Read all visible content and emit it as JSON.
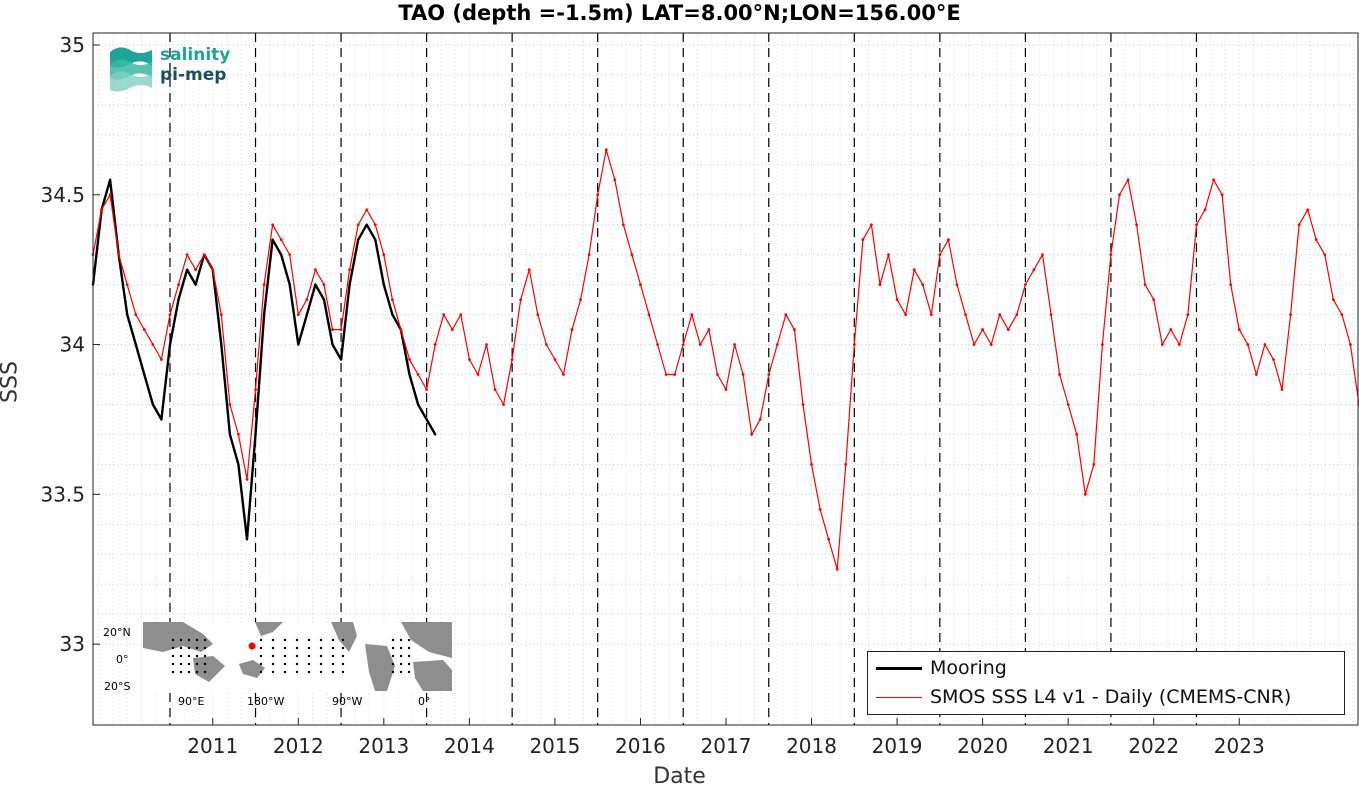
{
  "chart_data": {
    "type": "line",
    "title": "TAO (depth =-1.5m) LAT=8.00°N;LON=156.00°E",
    "xlabel": "Date",
    "ylabel": "SSS",
    "xlim": [
      2010.1,
      2024.9
    ],
    "ylim": [
      32.73,
      35.04
    ],
    "yticks": [
      33,
      33.5,
      34,
      34.5,
      35
    ],
    "ytick_labels": [
      "33",
      "33.5",
      "34",
      "34.5",
      "35"
    ],
    "xtick_labels": [
      "2011",
      "2012",
      "2013",
      "2014",
      "2015",
      "2016",
      "2017",
      "2018",
      "2019",
      "2020",
      "2021",
      "2022",
      "2023"
    ],
    "year_lines": [
      2011,
      2012,
      2013,
      2014,
      2015,
      2016,
      2017,
      2018,
      2019,
      2020,
      2021,
      2022,
      2023
    ],
    "grid": true,
    "legend_position": "bottom-right",
    "series": [
      {
        "name": "Mooring",
        "color": "#000000",
        "x": [
          2010.1,
          2010.2,
          2010.3,
          2010.4,
          2010.5,
          2010.6,
          2010.7,
          2010.8,
          2010.9,
          2011.0,
          2011.1,
          2011.2,
          2011.3,
          2011.4,
          2011.5,
          2011.6,
          2011.7,
          2011.8,
          2011.9,
          2012.0,
          2012.1,
          2012.2,
          2012.3,
          2012.4,
          2012.5,
          2012.6,
          2012.7,
          2012.8,
          2012.9,
          2013.0,
          2013.1,
          2013.2,
          2013.3,
          2013.4,
          2013.5,
          2013.6,
          2013.7,
          2013.8,
          2013.9,
          2014.0,
          2014.1
        ],
        "y": [
          34.2,
          34.45,
          34.55,
          34.3,
          34.1,
          34.0,
          33.9,
          33.8,
          33.75,
          34.0,
          34.15,
          34.25,
          34.2,
          34.3,
          34.25,
          34.0,
          33.7,
          33.6,
          33.35,
          33.7,
          34.1,
          34.35,
          34.3,
          34.2,
          34.0,
          34.1,
          34.2,
          34.15,
          34.0,
          33.95,
          34.2,
          34.35,
          34.4,
          34.35,
          34.2,
          34.1,
          34.05,
          33.9,
          33.8,
          33.75,
          33.7
        ]
      },
      {
        "name": "SMOS SSS L4 v1 - Daily (CMEMS-CNR)",
        "color": "#ff0000",
        "x": [
          2010.1,
          2010.2,
          2010.3,
          2010.4,
          2010.5,
          2010.6,
          2010.7,
          2010.8,
          2010.9,
          2011.0,
          2011.1,
          2011.2,
          2011.3,
          2011.4,
          2011.5,
          2011.6,
          2011.7,
          2011.8,
          2011.9,
          2012.0,
          2012.1,
          2012.2,
          2012.3,
          2012.4,
          2012.5,
          2012.6,
          2012.7,
          2012.8,
          2012.9,
          2013.0,
          2013.1,
          2013.2,
          2013.3,
          2013.4,
          2013.5,
          2013.6,
          2013.7,
          2013.8,
          2013.9,
          2014.0,
          2014.1,
          2014.2,
          2014.3,
          2014.4,
          2014.5,
          2014.6,
          2014.7,
          2014.8,
          2014.9,
          2015.0,
          2015.1,
          2015.2,
          2015.3,
          2015.4,
          2015.5,
          2015.6,
          2015.7,
          2015.8,
          2015.9,
          2016.0,
          2016.1,
          2016.2,
          2016.3,
          2016.4,
          2016.5,
          2016.6,
          2016.7,
          2016.8,
          2016.9,
          2017.0,
          2017.1,
          2017.2,
          2017.3,
          2017.4,
          2017.5,
          2017.6,
          2017.7,
          2017.8,
          2017.9,
          2018.0,
          2018.1,
          2018.2,
          2018.3,
          2018.4,
          2018.5,
          2018.6,
          2018.7,
          2018.8,
          2018.9,
          2019.0,
          2019.1,
          2019.2,
          2019.3,
          2019.4,
          2019.5,
          2019.6,
          2019.7,
          2019.8,
          2019.9,
          2020.0,
          2020.1,
          2020.2,
          2020.3,
          2020.4,
          2020.5,
          2020.6,
          2020.7,
          2020.8,
          2020.9,
          2021.0,
          2021.1,
          2021.2,
          2021.3,
          2021.4,
          2021.5,
          2021.6,
          2021.7,
          2021.8,
          2021.9,
          2022.0,
          2022.1,
          2022.2,
          2022.3,
          2022.4,
          2022.5,
          2022.6,
          2022.7,
          2022.8,
          2022.9,
          2023.0,
          2023.1,
          2023.2,
          2023.3,
          2023.4,
          2023.5,
          2023.6,
          2023.7,
          2023.8,
          2023.9,
          2024.0,
          2024.1,
          2024.2,
          2024.3,
          2024.4,
          2024.5,
          2024.6,
          2024.7,
          2024.8,
          2024.9
        ],
        "y": [
          34.3,
          34.45,
          34.5,
          34.3,
          34.2,
          34.1,
          34.05,
          34.0,
          33.95,
          34.1,
          34.2,
          34.3,
          34.25,
          34.3,
          34.25,
          34.1,
          33.8,
          33.7,
          33.55,
          33.85,
          34.2,
          34.4,
          34.35,
          34.3,
          34.1,
          34.15,
          34.25,
          34.2,
          34.05,
          34.05,
          34.25,
          34.4,
          34.45,
          34.4,
          34.3,
          34.15,
          34.05,
          33.95,
          33.9,
          33.85,
          34.0,
          34.1,
          34.05,
          34.1,
          33.95,
          33.9,
          34.0,
          33.85,
          33.8,
          33.95,
          34.15,
          34.25,
          34.1,
          34.0,
          33.95,
          33.9,
          34.05,
          34.15,
          34.3,
          34.5,
          34.65,
          34.55,
          34.4,
          34.3,
          34.2,
          34.1,
          34.0,
          33.9,
          33.9,
          34.0,
          34.1,
          34.0,
          34.05,
          33.9,
          33.85,
          34.0,
          33.9,
          33.7,
          33.75,
          33.9,
          34.0,
          34.1,
          34.05,
          33.8,
          33.6,
          33.45,
          33.35,
          33.25,
          33.6,
          34.0,
          34.35,
          34.4,
          34.2,
          34.3,
          34.15,
          34.1,
          34.25,
          34.2,
          34.1,
          34.3,
          34.35,
          34.2,
          34.1,
          34.0,
          34.05,
          34.0,
          34.1,
          34.05,
          34.1,
          34.2,
          34.25,
          34.3,
          34.1,
          33.9,
          33.8,
          33.7,
          33.5,
          33.6,
          34.0,
          34.3,
          34.5,
          34.55,
          34.4,
          34.2,
          34.15,
          34.0,
          34.05,
          34.0,
          34.1,
          34.4,
          34.45,
          34.55,
          34.5,
          34.2,
          34.05,
          34.0,
          33.9,
          34.0,
          33.95,
          33.85,
          34.1,
          34.4,
          34.45,
          34.35,
          34.3,
          34.15,
          34.1,
          34.0,
          33.8
        ]
      }
    ]
  },
  "logo": {
    "line1": "salinity",
    "line2": "pi-mep"
  },
  "inset_map": {
    "lat_labels": [
      "20°N",
      "0°",
      "20°S"
    ],
    "lon_labels": [
      "90°E",
      "180°W",
      "90°W",
      "0°"
    ]
  }
}
